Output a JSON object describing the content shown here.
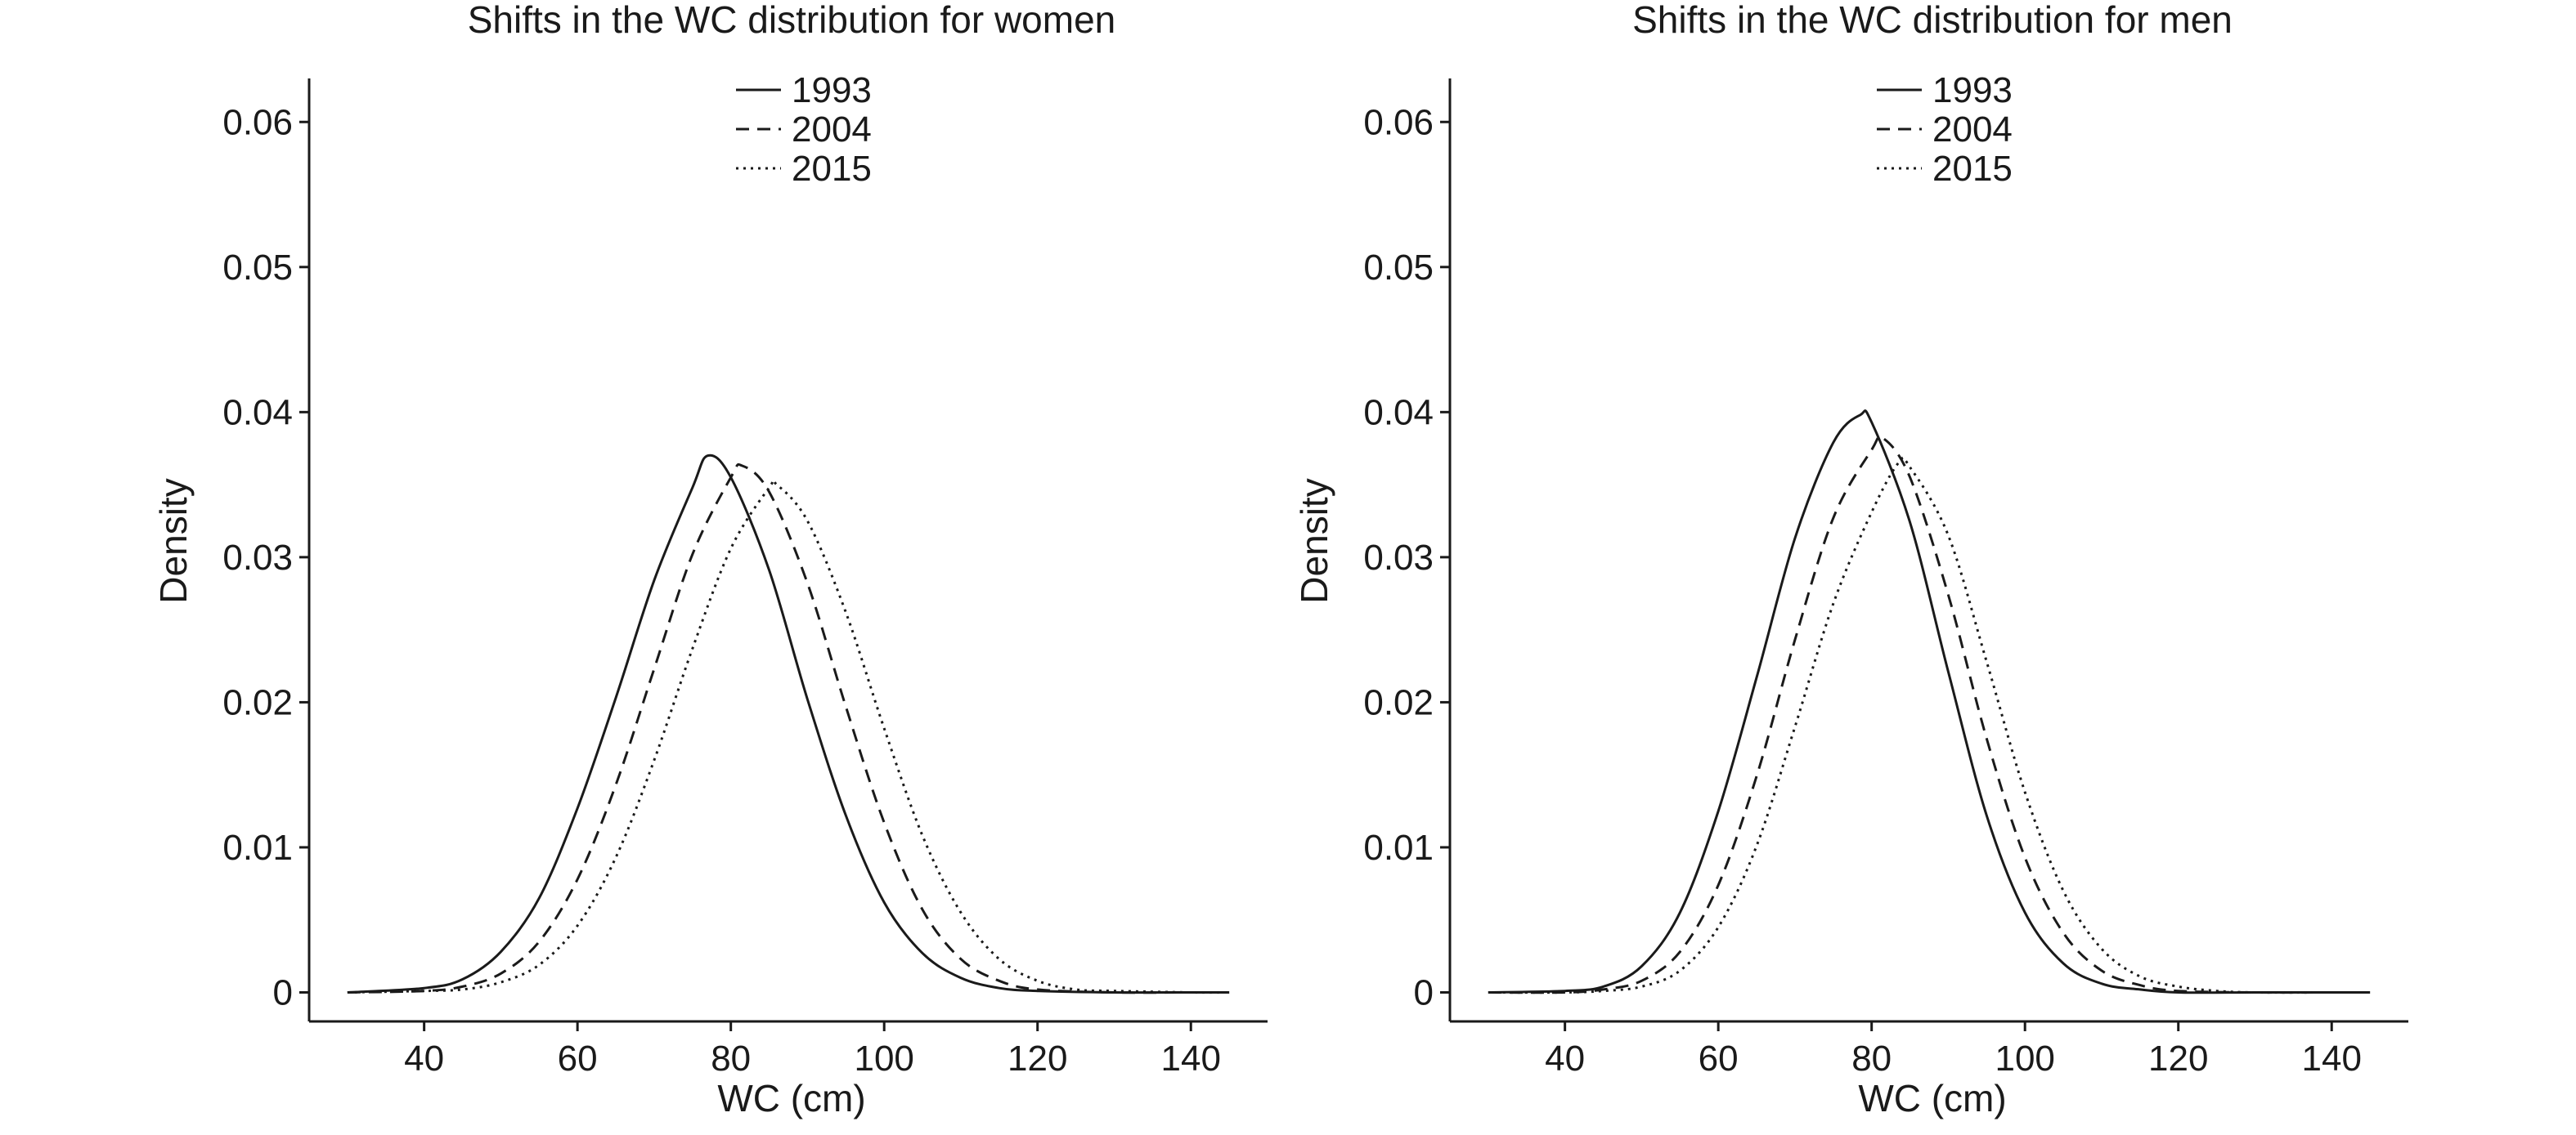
{
  "chart_data": [
    {
      "type": "line",
      "title": "Shifts in the WC distribution for women",
      "xlabel": "WC (cm)",
      "ylabel": "Density",
      "xlim": [
        25,
        150
      ],
      "ylim": [
        -0.002,
        0.063
      ],
      "xticks": [
        40,
        60,
        80,
        100,
        120,
        140
      ],
      "xtick_labels": [
        "40",
        "60",
        "80",
        "100",
        "120",
        "140"
      ],
      "yticks": [
        0,
        0.01,
        0.02,
        0.03,
        0.04,
        0.05,
        0.06
      ],
      "ytick_labels": [
        "0",
        "0.01",
        "0.02",
        "0.03",
        "0.04",
        "0.05",
        "0.06"
      ],
      "grid": false,
      "legend_position": "top-center",
      "series": [
        {
          "name": "1993",
          "dash": "solid",
          "x": [
            30,
            40,
            45,
            50,
            55,
            60,
            65,
            70,
            75,
            77,
            80,
            85,
            90,
            95,
            100,
            105,
            110,
            115,
            120,
            130,
            140,
            145
          ],
          "y": [
            0.0,
            0.0003,
            0.0009,
            0.0028,
            0.0065,
            0.0127,
            0.0203,
            0.0284,
            0.0348,
            0.037,
            0.0355,
            0.0291,
            0.0202,
            0.0122,
            0.0062,
            0.0027,
            0.001,
            0.0003,
            0.0001,
            0.0,
            0.0,
            0.0
          ]
        },
        {
          "name": "2004",
          "dash": "dashed",
          "x": [
            30,
            40,
            45,
            50,
            55,
            60,
            65,
            70,
            75,
            80,
            81.5,
            85,
            90,
            95,
            100,
            105,
            110,
            115,
            120,
            130,
            140,
            145
          ],
          "y": [
            0.0,
            0.0001,
            0.0004,
            0.0013,
            0.0035,
            0.0078,
            0.0143,
            0.0223,
            0.0302,
            0.0355,
            0.0363,
            0.0345,
            0.0282,
            0.0197,
            0.0117,
            0.0057,
            0.0023,
            0.0008,
            0.0002,
            0.0,
            0.0,
            0.0
          ]
        },
        {
          "name": "2015",
          "dash": "dotted",
          "x": [
            30,
            40,
            45,
            50,
            55,
            60,
            65,
            70,
            75,
            80,
            85,
            86,
            90,
            95,
            100,
            105,
            110,
            115,
            120,
            125,
            130,
            140,
            145
          ],
          "y": [
            0.0,
            0.0001,
            0.0002,
            0.0007,
            0.0019,
            0.0046,
            0.0093,
            0.016,
            0.0237,
            0.0306,
            0.0348,
            0.035,
            0.0325,
            0.0262,
            0.0182,
            0.0108,
            0.0055,
            0.0023,
            0.0008,
            0.0002,
            0.0001,
            0.0,
            0.0
          ]
        }
      ]
    },
    {
      "type": "line",
      "title": "Shifts in the WC distribution for men",
      "xlabel": "WC (cm)",
      "ylabel": "Density",
      "xlim": [
        25,
        150
      ],
      "ylim": [
        -0.002,
        0.063
      ],
      "xticks": [
        40,
        60,
        80,
        100,
        120,
        140
      ],
      "xtick_labels": [
        "40",
        "60",
        "80",
        "100",
        "120",
        "140"
      ],
      "yticks": [
        0,
        0.01,
        0.02,
        0.03,
        0.04,
        0.05,
        0.06
      ],
      "ytick_labels": [
        "0",
        "0.01",
        "0.02",
        "0.03",
        "0.04",
        "0.05",
        "0.06"
      ],
      "grid": false,
      "legend_position": "top-center",
      "series": [
        {
          "name": "1993",
          "dash": "solid",
          "x": [
            30,
            40,
            45,
            50,
            55,
            60,
            65,
            70,
            75,
            78.5,
            80,
            85,
            90,
            95,
            100,
            105,
            110,
            115,
            120,
            130,
            140,
            145
          ],
          "y": [
            0.0,
            0.0001,
            0.0004,
            0.0018,
            0.0055,
            0.0125,
            0.0217,
            0.0313,
            0.0379,
            0.0398,
            0.0393,
            0.0324,
            0.0221,
            0.0122,
            0.0055,
            0.002,
            0.0006,
            0.0002,
            0.0,
            0.0,
            0.0,
            0.0
          ]
        },
        {
          "name": "2004",
          "dash": "dashed",
          "x": [
            30,
            40,
            45,
            50,
            55,
            60,
            65,
            70,
            75,
            80,
            81.5,
            85,
            90,
            95,
            100,
            105,
            110,
            115,
            120,
            130,
            140,
            145
          ],
          "y": [
            0.0,
            0.0,
            0.0002,
            0.0008,
            0.0028,
            0.0074,
            0.0149,
            0.0243,
            0.0327,
            0.0374,
            0.0382,
            0.0355,
            0.0274,
            0.0175,
            0.0093,
            0.0041,
            0.0015,
            0.0005,
            0.0001,
            0.0,
            0.0,
            0.0
          ]
        },
        {
          "name": "2015",
          "dash": "dotted",
          "x": [
            30,
            40,
            45,
            50,
            55,
            60,
            65,
            70,
            75,
            80,
            83.5,
            85,
            90,
            95,
            100,
            105,
            110,
            115,
            120,
            125,
            130,
            140,
            145
          ],
          "y": [
            0.0,
            0.0,
            0.0001,
            0.0004,
            0.0015,
            0.0045,
            0.0101,
            0.0183,
            0.0268,
            0.0331,
            0.0365,
            0.0362,
            0.0315,
            0.0228,
            0.0138,
            0.007,
            0.003,
            0.0011,
            0.0004,
            0.0001,
            0.0,
            0.0,
            0.0
          ]
        }
      ]
    }
  ]
}
